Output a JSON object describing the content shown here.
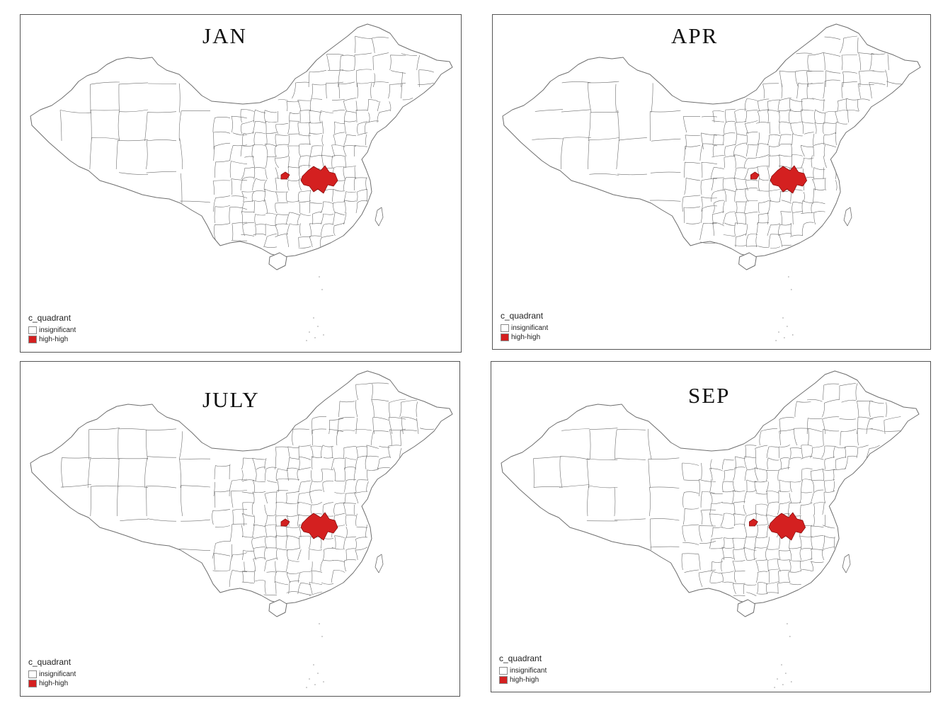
{
  "legend": {
    "title": "c_quadrant",
    "items": [
      {
        "label": "insignificant",
        "color": "#ffffff"
      },
      {
        "label": "high-high",
        "color": "#d42020"
      }
    ]
  },
  "colors": {
    "boundary": "#6e6e6e",
    "hotspot": "#d42020",
    "panel_border": "#555555"
  },
  "panels": [
    {
      "title": "JAN"
    },
    {
      "title": "APR"
    },
    {
      "title": "JULY"
    },
    {
      "title": "SEP"
    }
  ]
}
